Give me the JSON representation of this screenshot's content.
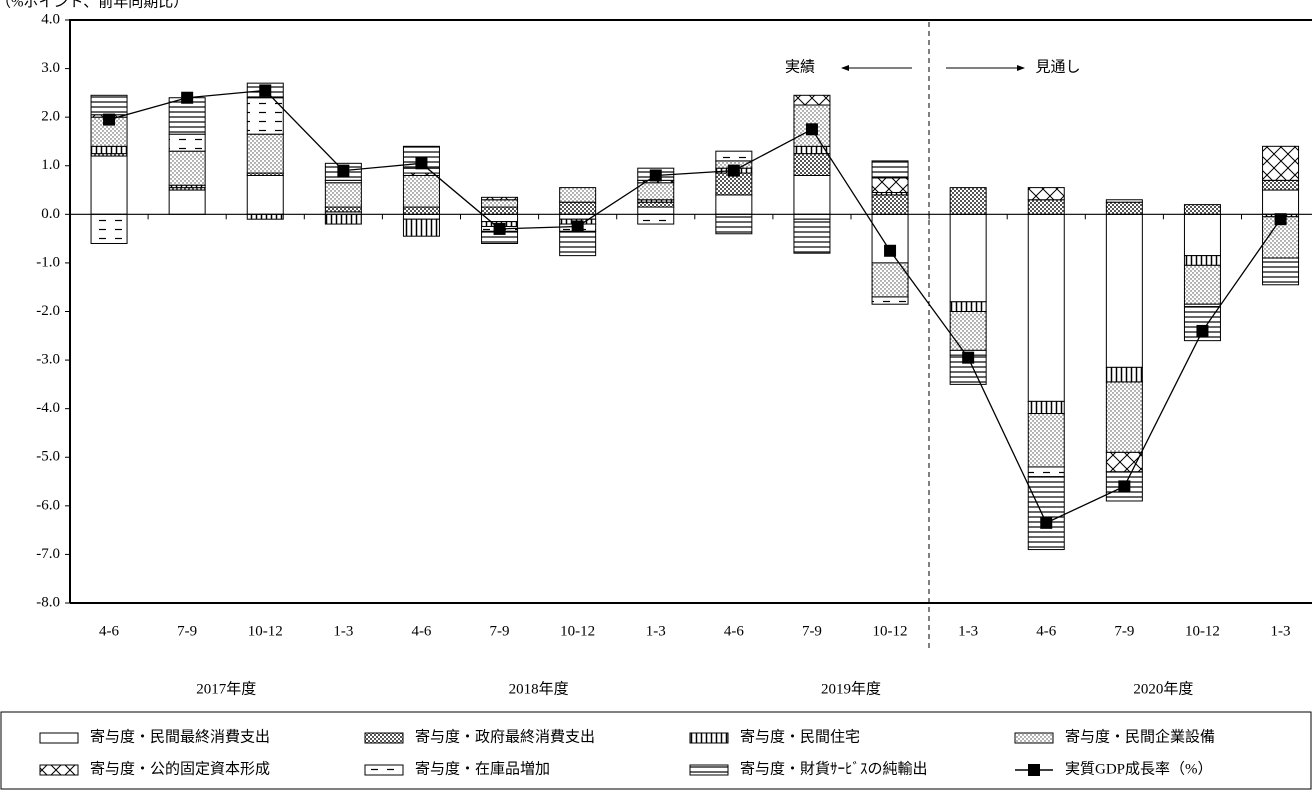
{
  "chart_data": {
    "type": "stacked-bar-line",
    "y_axis_label": "（%ポイント、前年同期比）",
    "categories": [
      "4-6",
      "7-9",
      "10-12",
      "1-3",
      "4-6",
      "7-9",
      "10-12",
      "1-3",
      "4-6",
      "7-9",
      "10-12",
      "1-3",
      "4-6",
      "7-9",
      "10-12",
      "1-3"
    ],
    "year_labels": [
      "2017年度",
      "2018年度",
      "2019年度",
      "2020年度"
    ],
    "annotations": {
      "actual": "実績",
      "forecast": "見通し"
    },
    "ylim": [
      -8,
      4
    ],
    "yticks": [
      {
        "value": 4,
        "label": "4.0"
      },
      {
        "value": 3,
        "label": "3.0"
      },
      {
        "value": 2,
        "label": "2.0"
      },
      {
        "value": 1,
        "label": "1.0"
      },
      {
        "value": 0,
        "label": "0.0"
      },
      {
        "value": -1,
        "label": "-1.0"
      },
      {
        "value": -2,
        "label": "-2.0"
      },
      {
        "value": -3,
        "label": "-3.0"
      },
      {
        "value": -4,
        "label": "-4.0"
      },
      {
        "value": -5,
        "label": "-5.0"
      },
      {
        "value": -6,
        "label": "-6.0"
      },
      {
        "value": -7,
        "label": "-7.0"
      },
      {
        "value": -8,
        "label": "-8.0"
      }
    ],
    "series": [
      {
        "name": "寄与度・民間最終消費支出",
        "pattern": "plain",
        "values": [
          1.2,
          0.5,
          0.8,
          0.05,
          -0.1,
          -0.15,
          -0.1,
          0.15,
          0.4,
          0.8,
          -1.0,
          -1.8,
          -3.85,
          -3.15,
          -0.85,
          0.5
        ]
      },
      {
        "name": "寄与度・政府最終消費支出",
        "pattern": "checks",
        "values": [
          0.05,
          0.05,
          0.05,
          0.1,
          0.15,
          0.15,
          0.25,
          0.1,
          0.45,
          0.45,
          0.4,
          0.55,
          0.3,
          0.25,
          0.2,
          0.2
        ]
      },
      {
        "name": "寄与度・民間住宅",
        "pattern": "vertical",
        "values": [
          0.15,
          0.05,
          -0.1,
          -0.2,
          -0.35,
          -0.1,
          -0.1,
          0.05,
          0.1,
          0.15,
          0.05,
          -0.2,
          -0.25,
          -0.3,
          -0.2,
          -0.05
        ]
      },
      {
        "name": "寄与度・民間企業設備",
        "pattern": "dots",
        "values": [
          0.6,
          0.7,
          0.8,
          0.5,
          0.65,
          0.15,
          0.3,
          0.35,
          0.15,
          0.85,
          -0.7,
          -0.8,
          -1.1,
          -1.45,
          -0.8,
          -0.85
        ]
      },
      {
        "name": "寄与度・公的固定資本形成",
        "pattern": "cross",
        "values": [
          0.05,
          0,
          0,
          0,
          0.05,
          0.05,
          0,
          0.05,
          0,
          0.2,
          0.3,
          0,
          0.25,
          -0.4,
          0,
          0.7
        ]
      },
      {
        "name": "寄与度・在庫品増加",
        "pattern": "dashes",
        "values": [
          -0.6,
          0.35,
          0.75,
          0.05,
          0.1,
          -0.1,
          -0.15,
          -0.2,
          0.2,
          -0.1,
          -0.15,
          -0.1,
          -0.2,
          0.05,
          -0.05,
          0
        ]
      },
      {
        "name": "寄与度・財貨ｻｰﾋﾞｽの純輸出",
        "pattern": "horizontal",
        "values": [
          0.4,
          0.75,
          0.3,
          0.35,
          0.45,
          -0.25,
          -0.5,
          0.25,
          -0.4,
          -0.7,
          0.35,
          -0.6,
          -1.5,
          -0.6,
          -0.7,
          -0.55
        ]
      }
    ],
    "line": {
      "name": "実質GDP成長率（%）",
      "color": "#000000",
      "values": [
        1.95,
        2.4,
        2.55,
        0.9,
        1.05,
        -0.3,
        -0.25,
        0.8,
        0.9,
        1.75,
        -0.75,
        -2.95,
        -6.35,
        -5.6,
        -2.4,
        -0.1
      ]
    }
  }
}
